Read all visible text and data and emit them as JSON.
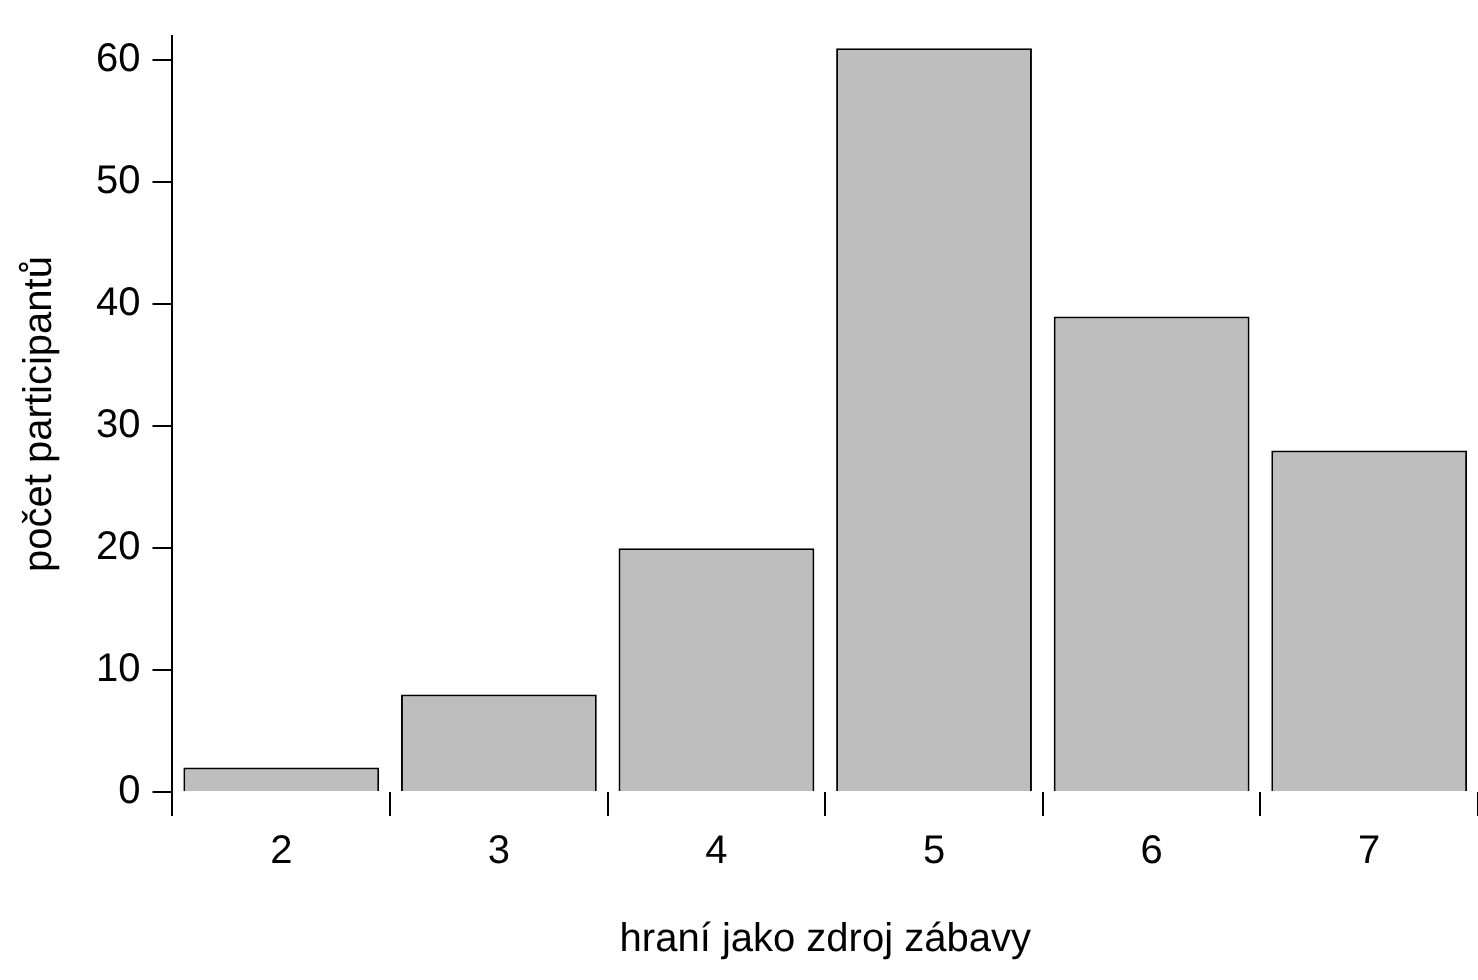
{
  "chart_data": {
    "type": "bar",
    "xlabel": "hraní jako zdroj zábavy",
    "ylabel": "počet participantů",
    "categories": [
      "2",
      "3",
      "4",
      "5",
      "6",
      "7"
    ],
    "values": [
      2,
      8,
      20,
      61,
      39,
      28
    ],
    "color": "#bebebe",
    "ylim": [
      0,
      62
    ],
    "yticks": [
      0,
      10,
      20,
      30,
      40,
      50,
      60
    ],
    "grid": false,
    "legend": false
  }
}
